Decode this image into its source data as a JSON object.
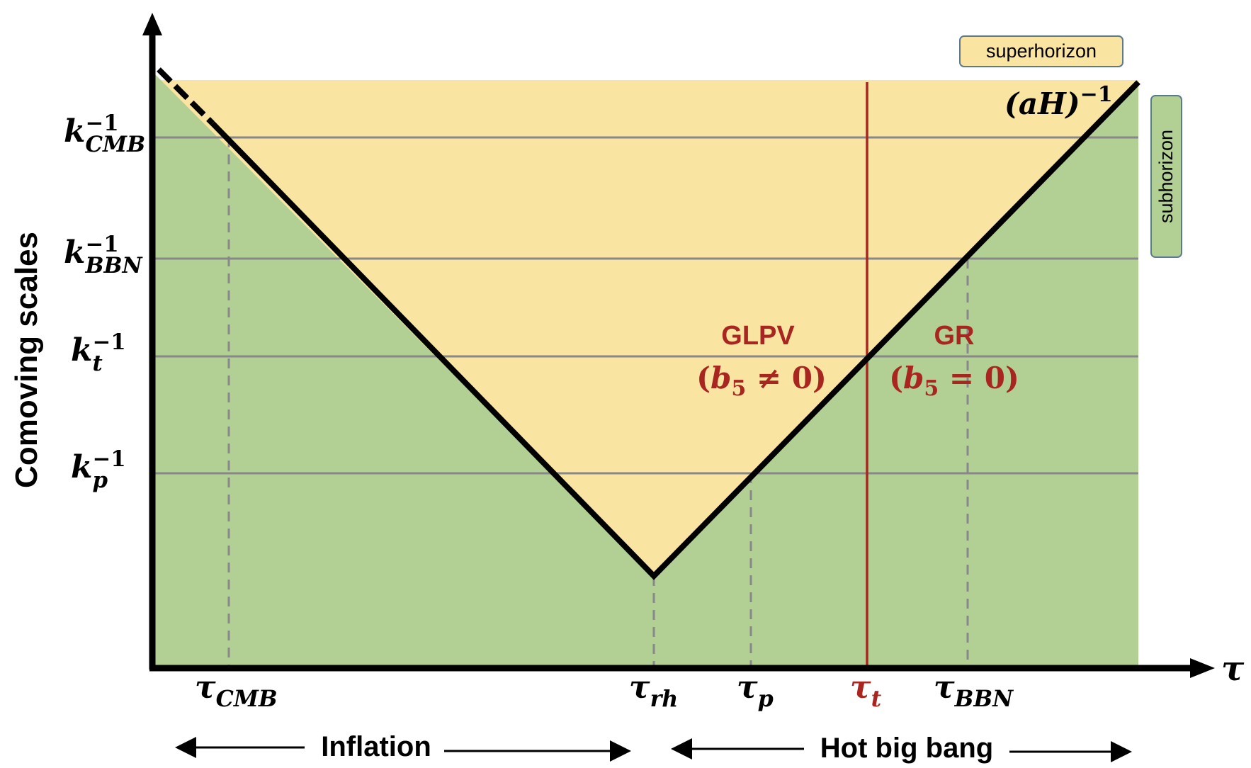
{
  "y_axis_label": "Comoving scales",
  "x_axis_label": "τ",
  "colors": {
    "superhorizon": "#f9e4a2",
    "subhorizon": "#b2cf94",
    "accent_red": "#a8261f",
    "grid_gray": "#888888",
    "black": "#000000"
  },
  "legend": {
    "superhorizon": "superhorizon",
    "subhorizon": "subhorizon"
  },
  "horizon_curve_label": {
    "base": "(aH)",
    "exp": "−1"
  },
  "scales": [
    {
      "base": "k",
      "sub": "CMB",
      "sup": "−1"
    },
    {
      "base": "k",
      "sub": "BBN",
      "sup": "−1"
    },
    {
      "base": "k",
      "sub": "t",
      "sup": "−1"
    },
    {
      "base": "k",
      "sub": "p",
      "sup": "−1"
    }
  ],
  "times": [
    {
      "base": "τ",
      "sub": "CMB"
    },
    {
      "base": "τ",
      "sub": "rh"
    },
    {
      "base": "τ",
      "sub": "p"
    },
    {
      "base": "τ",
      "sub": "t"
    },
    {
      "base": "τ",
      "sub": "BBN"
    }
  ],
  "regimes": {
    "left_name": "GLPV",
    "left_cond_b": "b",
    "left_cond_sub": "5",
    "left_cond_rel": " ≠ 0",
    "right_name": "GR",
    "right_cond_b": "b",
    "right_cond_sub": "5",
    "right_cond_rel": " = 0"
  },
  "eras": {
    "inflation": "Inflation",
    "hot_big_bang": "Hot big bang"
  }
}
